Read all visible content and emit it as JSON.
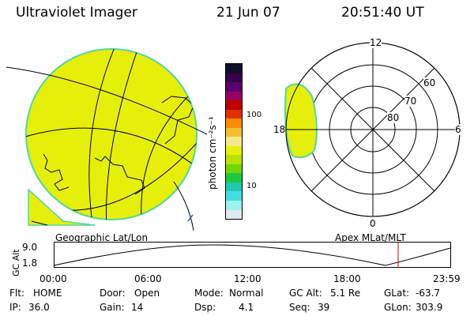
{
  "header": {
    "title": "Ultraviolet Imager",
    "date": "21 Jun 07",
    "time": "20:51:40 UT"
  },
  "geo_panel": {
    "label": "Geographic Lat/Lon",
    "fill_color": "#e6ef0a",
    "edge_color": "#4fd8a0"
  },
  "colorbar": {
    "unit_label": "photon cm⁻²s⁻¹",
    "tick_100": "100",
    "tick_10": "10",
    "colors": [
      "#101028",
      "#3a004a",
      "#5a0070",
      "#9a0060",
      "#c00000",
      "#e03000",
      "#ff8c00",
      "#f0c030",
      "#f5e98a",
      "#e6ef0a",
      "#b8e400",
      "#70d800",
      "#20c840",
      "#20c8b0",
      "#40e0e0",
      "#a0f0f0",
      "#e0e8f0"
    ]
  },
  "apex_panel": {
    "label": "Apex MLat/MLT",
    "mlt_labels": {
      "top": "12",
      "right": "6",
      "bottom": "0",
      "left": "18"
    },
    "lat_labels": [
      "60",
      "70",
      "80"
    ]
  },
  "altitude_plot": {
    "ylabel": "GC Alt",
    "y_max_label": "9.0",
    "y_min_label": "1.8",
    "time_ticks": [
      "00:00",
      "06:00",
      "12:00",
      "18:00",
      "23:59"
    ],
    "current_marker_color": "#d00000"
  },
  "status": {
    "flt_label": "Flt:",
    "flt_value": "HOME",
    "door_label": "Door:",
    "door_value": "Open",
    "mode_label": "Mode:",
    "mode_value": "Normal",
    "gcalt_label": "GC Alt:",
    "gcalt_value": "5.1 Re",
    "glat_label": "GLat:",
    "glat_value": "-63.7",
    "ip_label": "IP:",
    "ip_value": "36.0",
    "gain_label": "Gain:",
    "gain_value": "14",
    "dsp_label": "Dsp:",
    "dsp_value": "4.1",
    "seq_label": "Seq:",
    "seq_value": "39",
    "glon_label": "GLon:",
    "glon_value": "303.9"
  }
}
